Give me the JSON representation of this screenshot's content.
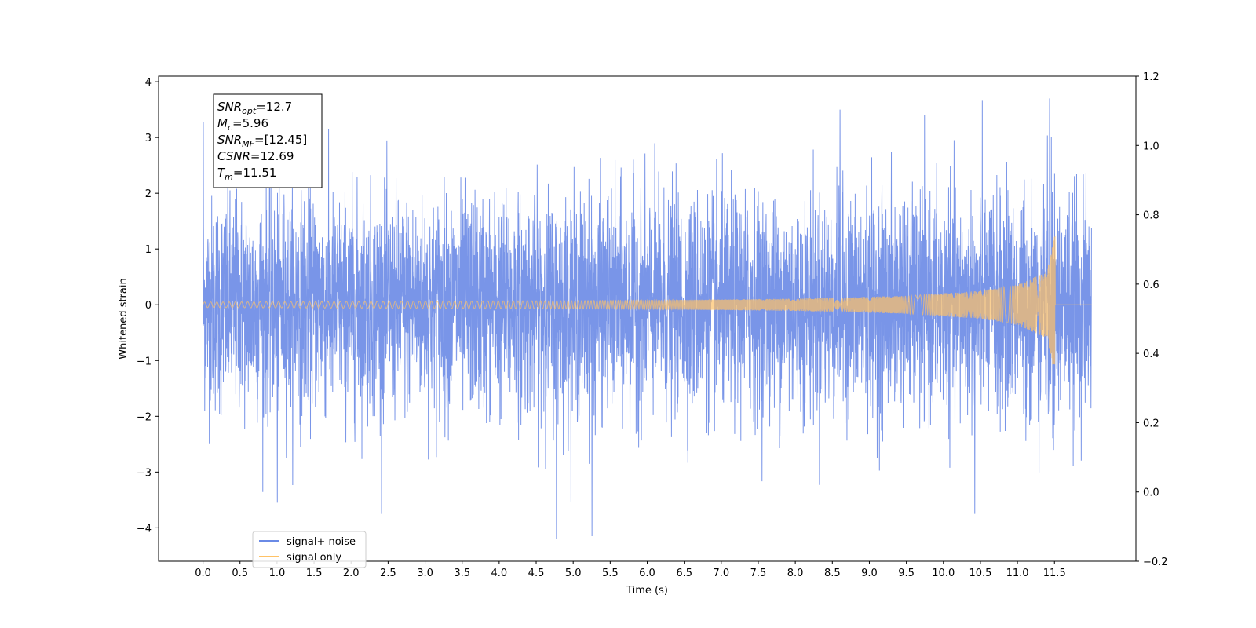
{
  "chart_data": {
    "type": "line",
    "title": "",
    "xlabel": "Time (s)",
    "ylabel": "Whitened strain",
    "xlim": [
      -0.6,
      12.6
    ],
    "ylim": [
      -4.6,
      4.1
    ],
    "y2lim": [
      -0.2,
      1.2
    ],
    "x_ticks": [
      0.0,
      0.5,
      1.0,
      1.5,
      2.0,
      2.5,
      3.0,
      3.5,
      4.0,
      4.5,
      5.0,
      5.5,
      6.0,
      6.5,
      7.0,
      7.5,
      8.0,
      8.5,
      9.0,
      9.5,
      10.0,
      10.5,
      11.0,
      11.5
    ],
    "x_tick_labels": [
      "0.0",
      "0.5",
      "1.0",
      "1.5",
      "2.0",
      "2.5",
      "3.0",
      "3.5",
      "4.0",
      "4.5",
      "5.0",
      "5.5",
      "6.0",
      "6.5",
      "7.0",
      "7.5",
      "8.0",
      "8.5",
      "9.0",
      "9.5",
      "10.0",
      "10.5",
      "11.0",
      "11.5"
    ],
    "y_ticks": [
      -4,
      -3,
      -2,
      -1,
      0,
      1,
      2,
      3,
      4
    ],
    "y_tick_labels": [
      "−4",
      "−3",
      "−2",
      "−1",
      "0",
      "1",
      "2",
      "3",
      "4"
    ],
    "y2_ticks": [
      -0.2,
      0.0,
      0.2,
      0.4,
      0.6,
      0.8,
      1.0,
      1.2
    ],
    "y2_tick_labels": [
      "−0.2",
      "0.0",
      "0.2",
      "0.4",
      "0.6",
      "0.8",
      "1.0",
      "1.2"
    ],
    "grid": false,
    "legend_position": "bottom-left",
    "series": [
      {
        "name": "signal+ noise",
        "color": "#6a8ae6",
        "time_range": [
          0.0,
          12.0
        ],
        "approx_std": 0.95,
        "approx_extremes": {
          "max": 3.7,
          "min": -4.2
        }
      },
      {
        "name": "signal only",
        "color": "#ffc266",
        "time_range": [
          0.0,
          12.0
        ],
        "merger_time": 11.51,
        "envelope_points": [
          {
            "t": 0.0,
            "amp": 0.05
          },
          {
            "t": 2.0,
            "amp": 0.06
          },
          {
            "t": 4.0,
            "amp": 0.07
          },
          {
            "t": 6.0,
            "amp": 0.08
          },
          {
            "t": 8.0,
            "amp": 0.11
          },
          {
            "t": 9.5,
            "amp": 0.16
          },
          {
            "t": 10.5,
            "amp": 0.25
          },
          {
            "t": 11.0,
            "amp": 0.36
          },
          {
            "t": 11.4,
            "amp": 0.6
          },
          {
            "t": 11.51,
            "amp": 1.3
          }
        ],
        "post_merger_value": 0.0
      }
    ],
    "annotation": {
      "lines": [
        {
          "base": "SNR",
          "sub": "opt",
          "value": "=12.7"
        },
        {
          "base": "M",
          "sub": "c",
          "value": "=5.96"
        },
        {
          "base": "SNR",
          "sub": "MF",
          "value": "=[12.45]"
        },
        {
          "base": "CSNR",
          "sub": "",
          "value": "=12.69"
        },
        {
          "base": "T",
          "sub": "m",
          "value": "=11.51"
        }
      ]
    }
  }
}
